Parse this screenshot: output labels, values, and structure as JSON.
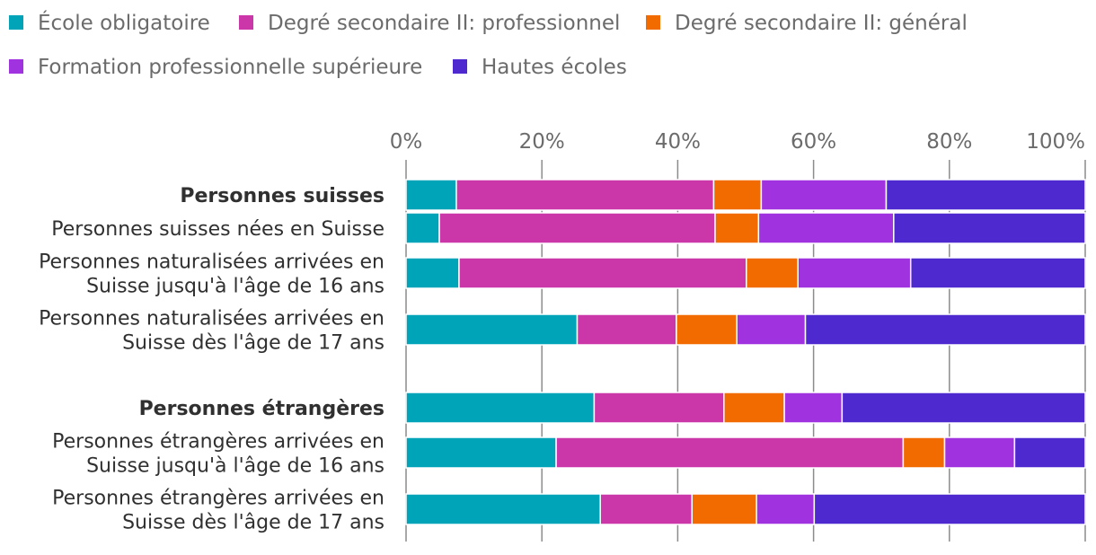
{
  "chart_data": {
    "type": "bar",
    "orientation": "horizontal",
    "stacked": true,
    "title": "",
    "xlabel": "",
    "ylabel": "",
    "xlim": [
      0,
      100
    ],
    "x_ticks": [
      "0%",
      "20%",
      "40%",
      "60%",
      "80%",
      "100%"
    ],
    "legend_position": "top",
    "categories": [
      {
        "label_lines": [
          "Personnes suisses"
        ],
        "bold": true,
        "group": 0
      },
      {
        "label_lines": [
          "Personnes suisses nées en Suisse"
        ],
        "bold": false,
        "group": 0
      },
      {
        "label_lines": [
          "Personnes naturalisées arrivées en",
          "Suisse jusqu'à l'âge de 16 ans"
        ],
        "bold": false,
        "group": 0
      },
      {
        "label_lines": [
          "Personnes naturalisées arrivées en",
          "Suisse dès l'âge de 17 ans"
        ],
        "bold": false,
        "group": 0
      },
      {
        "label_lines": [
          "Personnes étrangères"
        ],
        "bold": true,
        "group": 1
      },
      {
        "label_lines": [
          "Personnes étrangères arrivées en",
          "Suisse jusqu'à l'âge de 16 ans"
        ],
        "bold": false,
        "group": 1
      },
      {
        "label_lines": [
          "Personnes étrangères arrivées en",
          "Suisse dès l'âge de 17 ans"
        ],
        "bold": false,
        "group": 1
      }
    ],
    "series": [
      {
        "name": "École obligatoire",
        "color": "#00a4b9",
        "values": [
          7.4,
          4.9,
          7.8,
          25.2,
          27.7,
          22.1,
          28.6
        ]
      },
      {
        "name": "Degré secondaire II: professionnel",
        "color": "#cb36a9",
        "values": [
          37.9,
          40.6,
          42.3,
          14.6,
          19.1,
          51.1,
          13.5
        ]
      },
      {
        "name": "Degré secondaire II: général",
        "color": "#f26b00",
        "values": [
          7.0,
          6.4,
          7.6,
          8.9,
          8.9,
          6.1,
          9.5
        ]
      },
      {
        "name": "Formation professionnelle supérieure",
        "color": "#a032e0",
        "values": [
          18.4,
          19.9,
          16.6,
          10.1,
          8.5,
          10.3,
          8.5
        ]
      },
      {
        "name": "Hautes écoles",
        "color": "#4e29d0",
        "values": [
          29.3,
          28.2,
          25.7,
          41.2,
          35.8,
          10.4,
          39.9
        ]
      }
    ]
  }
}
